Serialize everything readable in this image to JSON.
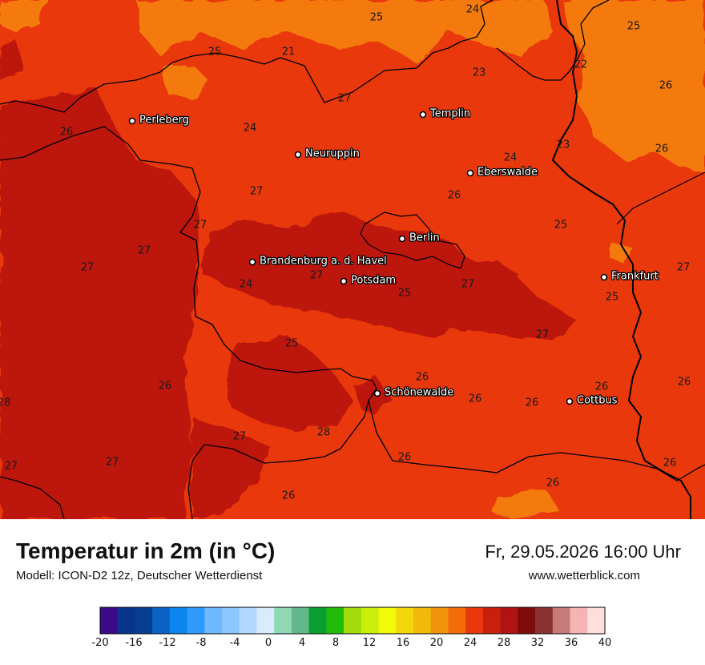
{
  "title": "Temperatur in 2m (in °C)",
  "model": "Modell: ICON-D2 12z, Deutscher Wetterdienst",
  "datetime": "Fr, 29.05.2026 16:00 Uhr",
  "website": "www.wetterblick.com",
  "colors": {
    "t21": "#f47a10",
    "t24": "#e8380c",
    "t27": "#bd1510",
    "border": "#000000"
  },
  "cities": [
    {
      "name": "Perleberg"
    },
    {
      "name": "Templin"
    },
    {
      "name": "Neuruppin"
    },
    {
      "name": "Eberswalde"
    },
    {
      "name": "Berlin"
    },
    {
      "name": "Brandenburg a. d. Havel"
    },
    {
      "name": "Potsdam"
    },
    {
      "name": "Frankfurt"
    },
    {
      "name": "Schönewalde"
    },
    {
      "name": "Cottbus"
    }
  ],
  "values": [
    "25",
    "24",
    "25",
    "21",
    "25",
    "23",
    "22",
    "26",
    "27",
    "26",
    "24",
    "24",
    "23",
    "26",
    "27",
    "26",
    "27",
    "25",
    "27",
    "27",
    "27",
    "24",
    "25",
    "28",
    "27",
    "25",
    "27",
    "25",
    "27",
    "26",
    "26",
    "26",
    "28",
    "27",
    "27",
    "27",
    "26",
    "26",
    "26",
    "26"
  ],
  "legend": {
    "colors": [
      "#3a0a8a",
      "#08348c",
      "#063f8f",
      "#0a62c7",
      "#0a86ee",
      "#2f9bff",
      "#6fb7ff",
      "#8cc6ff",
      "#b3d8ff",
      "#d8ebff",
      "#8fd9b5",
      "#62b88a",
      "#0a9e30",
      "#23bb0a",
      "#a3dc0a",
      "#c9ee0a",
      "#f2fa0a",
      "#f2d80a",
      "#f2b90a",
      "#f2940a",
      "#f26d0a",
      "#e8380c",
      "#c81f0e",
      "#b01313",
      "#7f0a0a",
      "#8a3232",
      "#c77a7a",
      "#f5b3b3",
      "#ffdede"
    ],
    "ticks": [
      "-20",
      "-16",
      "-12",
      "-8",
      "-4",
      "0",
      "4",
      "8",
      "12",
      "16",
      "20",
      "24",
      "28",
      "32",
      "36",
      "40"
    ]
  }
}
